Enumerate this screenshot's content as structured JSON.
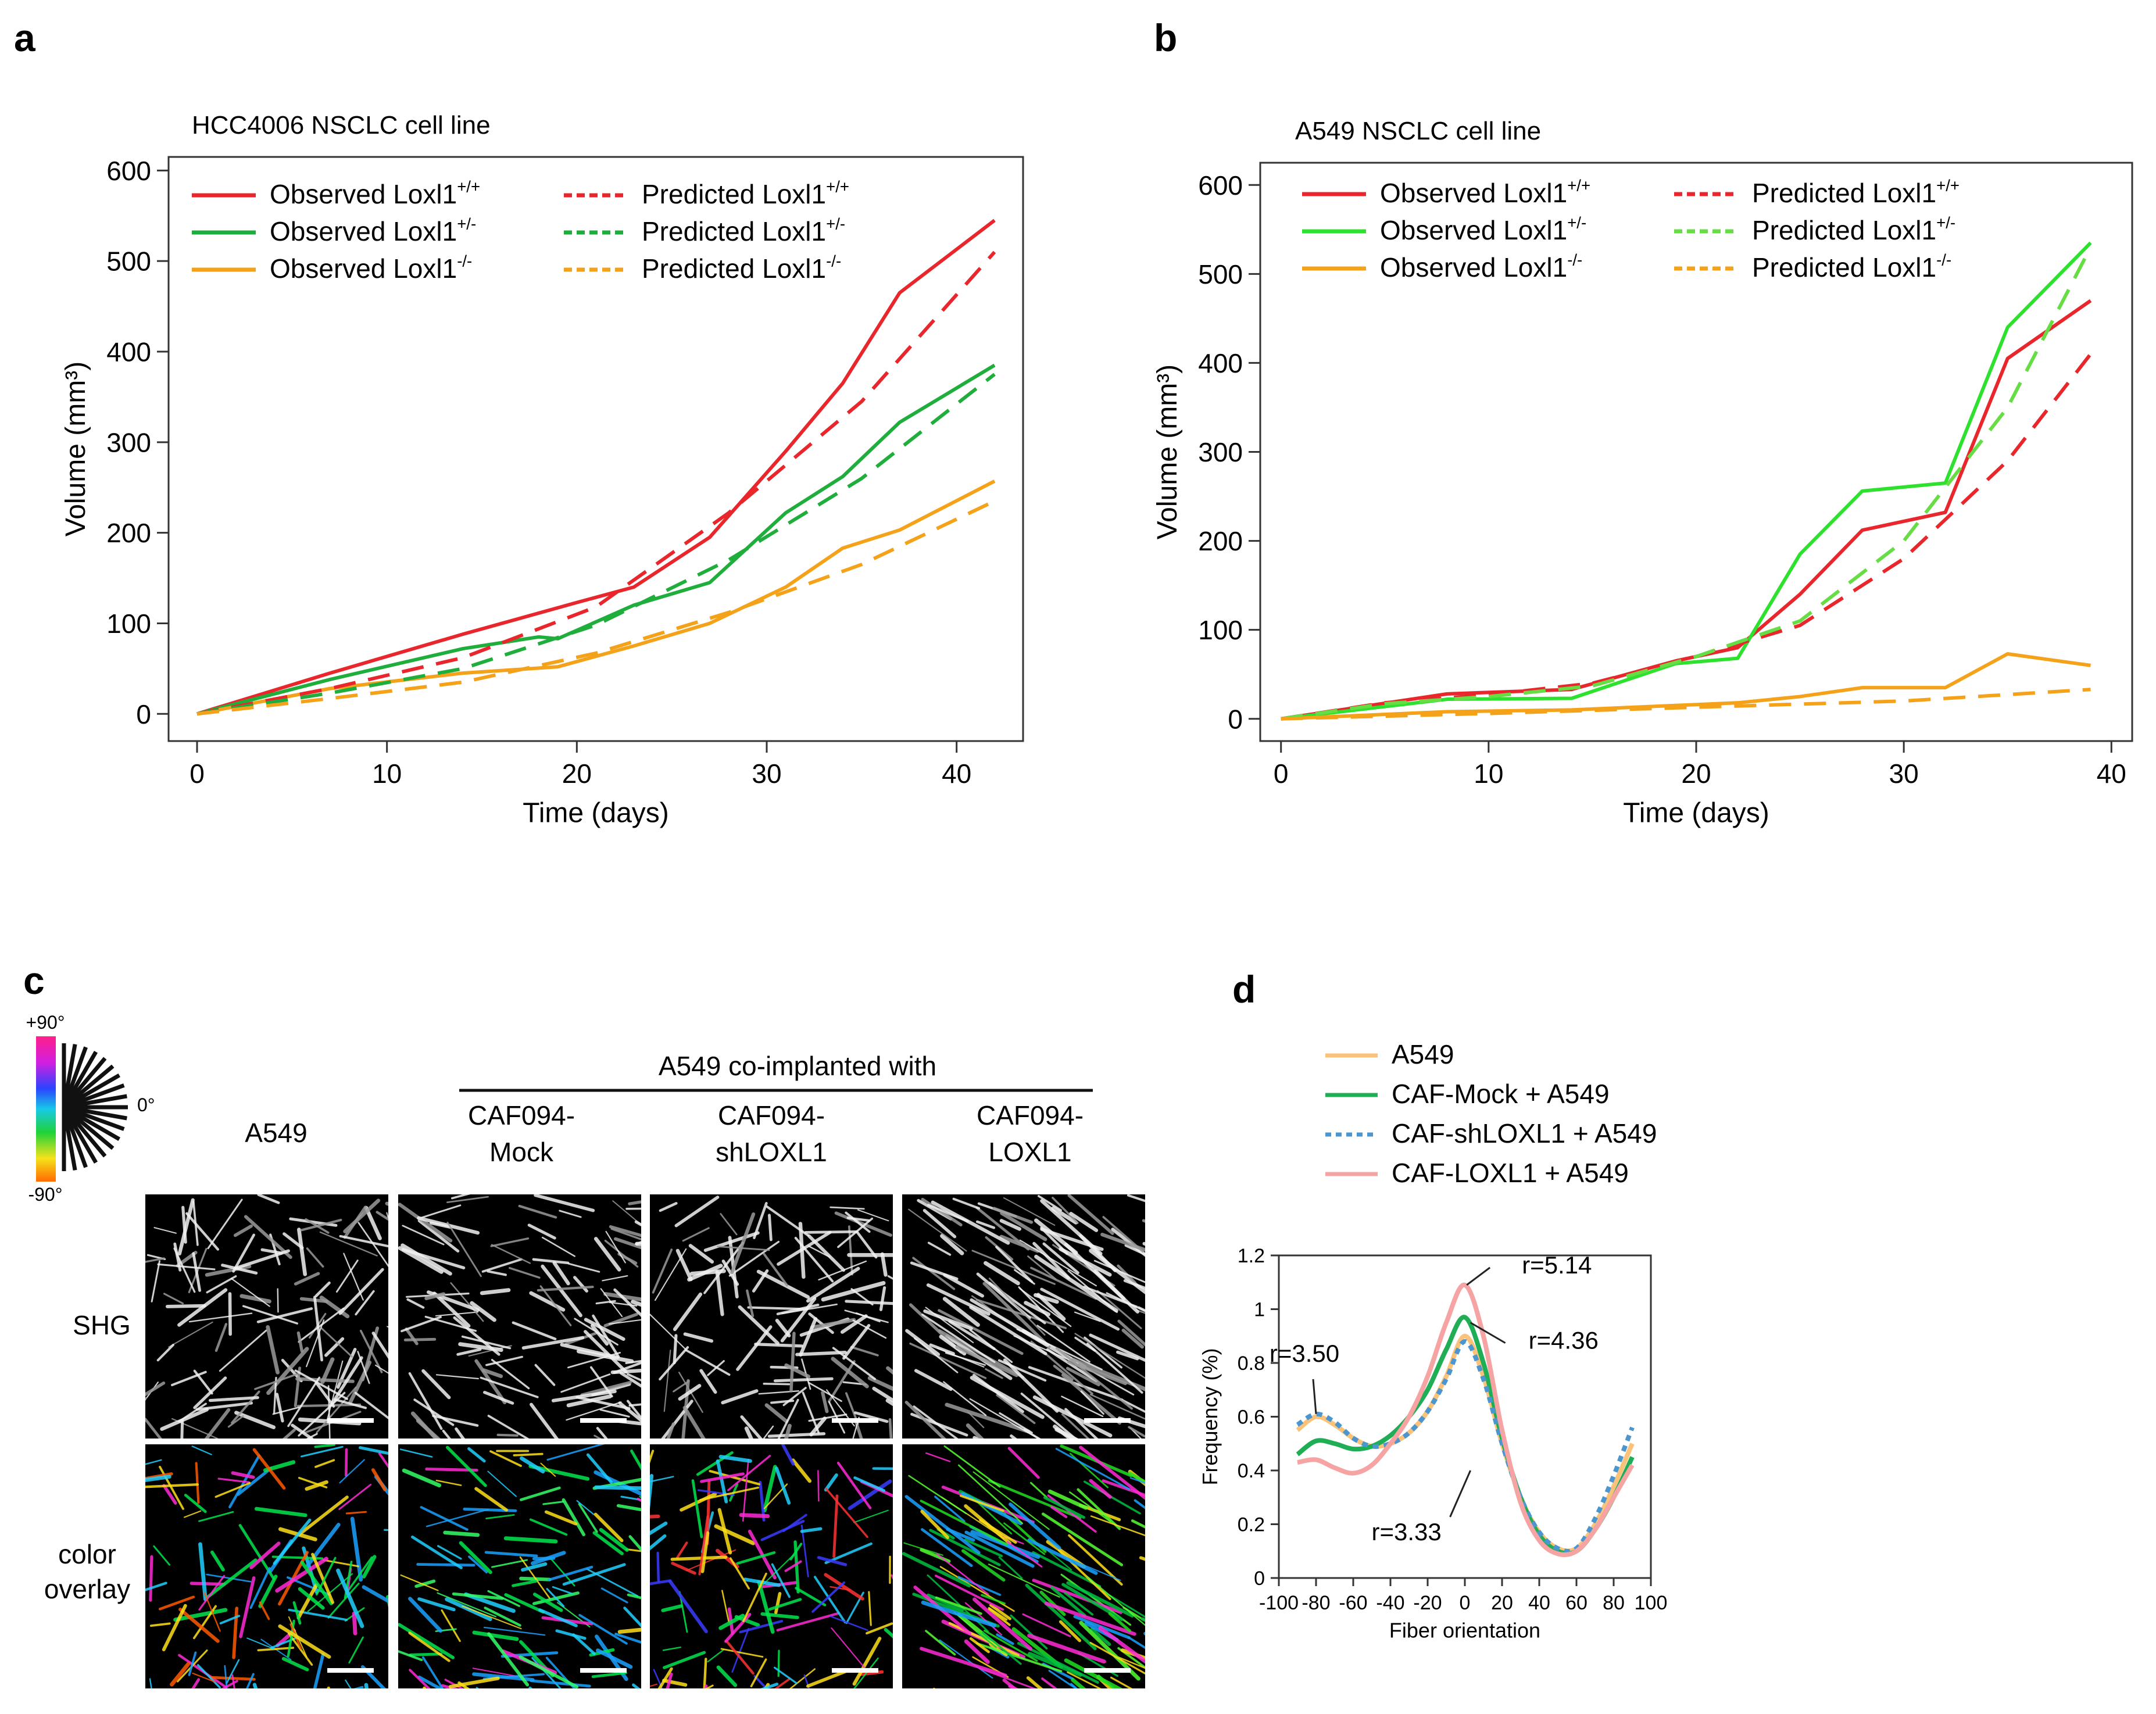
{
  "panel_labels": {
    "a": "a",
    "b": "b",
    "c": "c",
    "d": "d"
  },
  "chart_data": [
    {
      "id": "a",
      "type": "line",
      "title": "HCC4006 NSCLC cell line",
      "xlabel": "Time (days)",
      "ylabel": "Volume (mm³)",
      "xlim": [
        -1.5,
        43.5
      ],
      "ylim": [
        -30,
        615
      ],
      "xticks": [
        0,
        10,
        20,
        30,
        40
      ],
      "yticks": [
        0,
        100,
        200,
        300,
        400,
        500,
        600
      ],
      "series": [
        {
          "name": "Observed Loxl1",
          "sup": "+/+",
          "style": "solid",
          "color": "#e8262b",
          "x": [
            0,
            7,
            14,
            20,
            23,
            27,
            31,
            34,
            37,
            42
          ],
          "y": [
            0,
            45,
            88,
            123,
            140,
            195,
            290,
            365,
            465,
            545
          ]
        },
        {
          "name": "Observed Loxl1",
          "sup": "+/-",
          "style": "solid",
          "color": "#1fae3c",
          "x": [
            0,
            7,
            14,
            18,
            19,
            23,
            27,
            31,
            34,
            37,
            42
          ],
          "y": [
            0,
            38,
            72,
            85,
            83,
            120,
            145,
            222,
            262,
            322,
            385
          ]
        },
        {
          "name": "Observed Loxl1",
          "sup": "-/-",
          "style": "solid",
          "color": "#f5a21b",
          "x": [
            0,
            7,
            14,
            19,
            23,
            27,
            31,
            34,
            37,
            42
          ],
          "y": [
            0,
            28,
            45,
            52,
            75,
            100,
            140,
            183,
            203,
            257
          ]
        },
        {
          "name": "Predicted Loxl1",
          "sup": "+/+",
          "style": "dashed",
          "color": "#e8262b",
          "x": [
            0,
            7,
            14,
            21,
            28,
            35,
            42
          ],
          "y": [
            0,
            28,
            62,
            118,
            222,
            345,
            510
          ]
        },
        {
          "name": "Predicted Loxl1",
          "sup": "+/-",
          "style": "dashed",
          "color": "#1fae3c",
          "x": [
            0,
            7,
            14,
            21,
            28,
            35,
            42
          ],
          "y": [
            0,
            23,
            50,
            98,
            170,
            260,
            375
          ]
        },
        {
          "name": "Predicted Loxl1",
          "sup": "-/-",
          "style": "dashed",
          "color": "#f5a21b",
          "x": [
            0,
            7,
            14,
            21,
            28,
            35,
            42
          ],
          "y": [
            0,
            17,
            35,
            67,
            112,
            165,
            235
          ]
        }
      ]
    },
    {
      "id": "b",
      "type": "line",
      "title": "A549 NSCLC cell line",
      "xlabel": "Time (days)",
      "ylabel": "Volume (mm³)",
      "xlim": [
        -1,
        41
      ],
      "ylim": [
        -25,
        625
      ],
      "xticks": [
        0,
        10,
        20,
        30,
        40
      ],
      "yticks": [
        0,
        100,
        200,
        300,
        400,
        500,
        600
      ],
      "series": [
        {
          "name": "Observed Loxl1",
          "sup": "+/+",
          "style": "solid",
          "color": "#e8262b",
          "x": [
            0,
            8,
            14,
            19,
            22,
            25,
            28,
            32,
            35,
            39
          ],
          "y": [
            0,
            28,
            33,
            65,
            80,
            140,
            212,
            232,
            405,
            470
          ]
        },
        {
          "name": "Observed Loxl1",
          "sup": "+/-",
          "style": "solid",
          "color": "#2ee12e",
          "x": [
            0,
            8,
            14,
            19,
            22,
            25,
            28,
            32,
            35,
            39
          ],
          "y": [
            0,
            22,
            23,
            62,
            68,
            185,
            256,
            265,
            440,
            535
          ]
        },
        {
          "name": "Observed Loxl1",
          "sup": "-/-",
          "style": "solid",
          "color": "#f5a21b",
          "x": [
            0,
            8,
            14,
            19,
            22,
            25,
            28,
            32,
            35,
            39
          ],
          "y": [
            0,
            8,
            10,
            15,
            18,
            25,
            35,
            35,
            73,
            60
          ]
        },
        {
          "name": "Predicted Loxl1",
          "sup": "+/+",
          "style": "dashed",
          "color": "#e8262b",
          "x": [
            0,
            5,
            10,
            15,
            20,
            25,
            30,
            35,
            39
          ],
          "y": [
            0,
            18,
            27,
            40,
            70,
            105,
            180,
            290,
            410
          ]
        },
        {
          "name": "Predicted Loxl1",
          "sup": "+/-",
          "style": "dashed",
          "color": "#66dd44",
          "x": [
            0,
            5,
            10,
            15,
            20,
            25,
            30,
            35,
            39
          ],
          "y": [
            0,
            17,
            25,
            37,
            70,
            110,
            200,
            350,
            530
          ]
        },
        {
          "name": "Predicted Loxl1",
          "sup": "-/-",
          "style": "dashed",
          "color": "#f5a21b",
          "x": [
            0,
            10,
            20,
            30,
            39
          ],
          "y": [
            0,
            6,
            13,
            20,
            33
          ]
        }
      ]
    },
    {
      "id": "d",
      "type": "line",
      "title": "",
      "xlabel": "Fiber orientation",
      "ylabel": "Frequency (%)",
      "xlim": [
        -100,
        100
      ],
      "ylim": [
        0,
        1.2
      ],
      "xticks": [
        -100,
        -80,
        -60,
        -40,
        -20,
        0,
        20,
        40,
        60,
        80,
        100
      ],
      "yticks": [
        0,
        0.2,
        0.4,
        0.6,
        0.8,
        1,
        1.2
      ],
      "ytick_labels": [
        "0",
        "0.2",
        "0.4",
        "0.6",
        "0.8",
        "1",
        "1.2"
      ],
      "series": [
        {
          "name": "A549",
          "style": "solid",
          "color": "#fbc27a",
          "x": [
            -90,
            -80,
            -70,
            -60,
            -50,
            -40,
            -30,
            -20,
            -10,
            0,
            10,
            20,
            30,
            40,
            50,
            60,
            70,
            80,
            90
          ],
          "y": [
            0.55,
            0.6,
            0.57,
            0.52,
            0.49,
            0.5,
            0.54,
            0.62,
            0.75,
            0.9,
            0.75,
            0.5,
            0.3,
            0.17,
            0.11,
            0.11,
            0.2,
            0.34,
            0.5
          ]
        },
        {
          "name": "CAF-Mock + A549",
          "style": "solid",
          "color": "#1fae55",
          "x": [
            -90,
            -80,
            -70,
            -60,
            -50,
            -40,
            -30,
            -20,
            -10,
            0,
            10,
            20,
            30,
            40,
            50,
            60,
            70,
            80,
            90
          ],
          "y": [
            0.46,
            0.51,
            0.5,
            0.48,
            0.49,
            0.53,
            0.6,
            0.7,
            0.85,
            0.97,
            0.8,
            0.52,
            0.3,
            0.16,
            0.1,
            0.1,
            0.18,
            0.3,
            0.45
          ]
        },
        {
          "name": "CAF-shLOXL1 + A549",
          "style": "dotted",
          "color": "#4b96cf",
          "x": [
            -90,
            -80,
            -70,
            -60,
            -50,
            -40,
            -30,
            -20,
            -10,
            0,
            10,
            20,
            30,
            40,
            50,
            60,
            70,
            80,
            90
          ],
          "y": [
            0.57,
            0.61,
            0.58,
            0.52,
            0.49,
            0.5,
            0.54,
            0.62,
            0.74,
            0.88,
            0.74,
            0.5,
            0.3,
            0.17,
            0.11,
            0.11,
            0.22,
            0.38,
            0.56
          ]
        },
        {
          "name": "CAF-LOXL1 + A549",
          "style": "solid",
          "color": "#f5a3a3",
          "x": [
            -90,
            -80,
            -70,
            -60,
            -50,
            -40,
            -30,
            -20,
            -10,
            0,
            10,
            20,
            30,
            40,
            50,
            60,
            70,
            80,
            90
          ],
          "y": [
            0.43,
            0.44,
            0.41,
            0.39,
            0.42,
            0.5,
            0.6,
            0.75,
            0.95,
            1.09,
            0.9,
            0.55,
            0.28,
            0.14,
            0.09,
            0.1,
            0.18,
            0.3,
            0.42
          ]
        }
      ],
      "annotations": [
        {
          "text": "r=5.14",
          "x": 1,
          "y": 1.09
        },
        {
          "text": "r=4.36",
          "x": 3,
          "y": 0.95
        },
        {
          "text": "r=3.50",
          "x": -80,
          "y": 0.61
        },
        {
          "text": "r=3.33",
          "x": 3,
          "y": 0.4
        }
      ]
    }
  ],
  "panel_c": {
    "color_key": {
      "top": "+90°",
      "mid": "0°",
      "bottom": "-90°"
    },
    "group_header": "A549 co-implanted with",
    "columns": [
      {
        "l1": "A549",
        "l2": ""
      },
      {
        "l1": "CAF094-",
        "l2": "Mock"
      },
      {
        "l1": "CAF094-",
        "l2": "shLOXL1"
      },
      {
        "l1": "CAF094-",
        "l2": "LOXL1"
      }
    ],
    "rows": [
      {
        "l1": "SHG",
        "l2": ""
      },
      {
        "l1": "color",
        "l2": "overlay"
      }
    ]
  }
}
